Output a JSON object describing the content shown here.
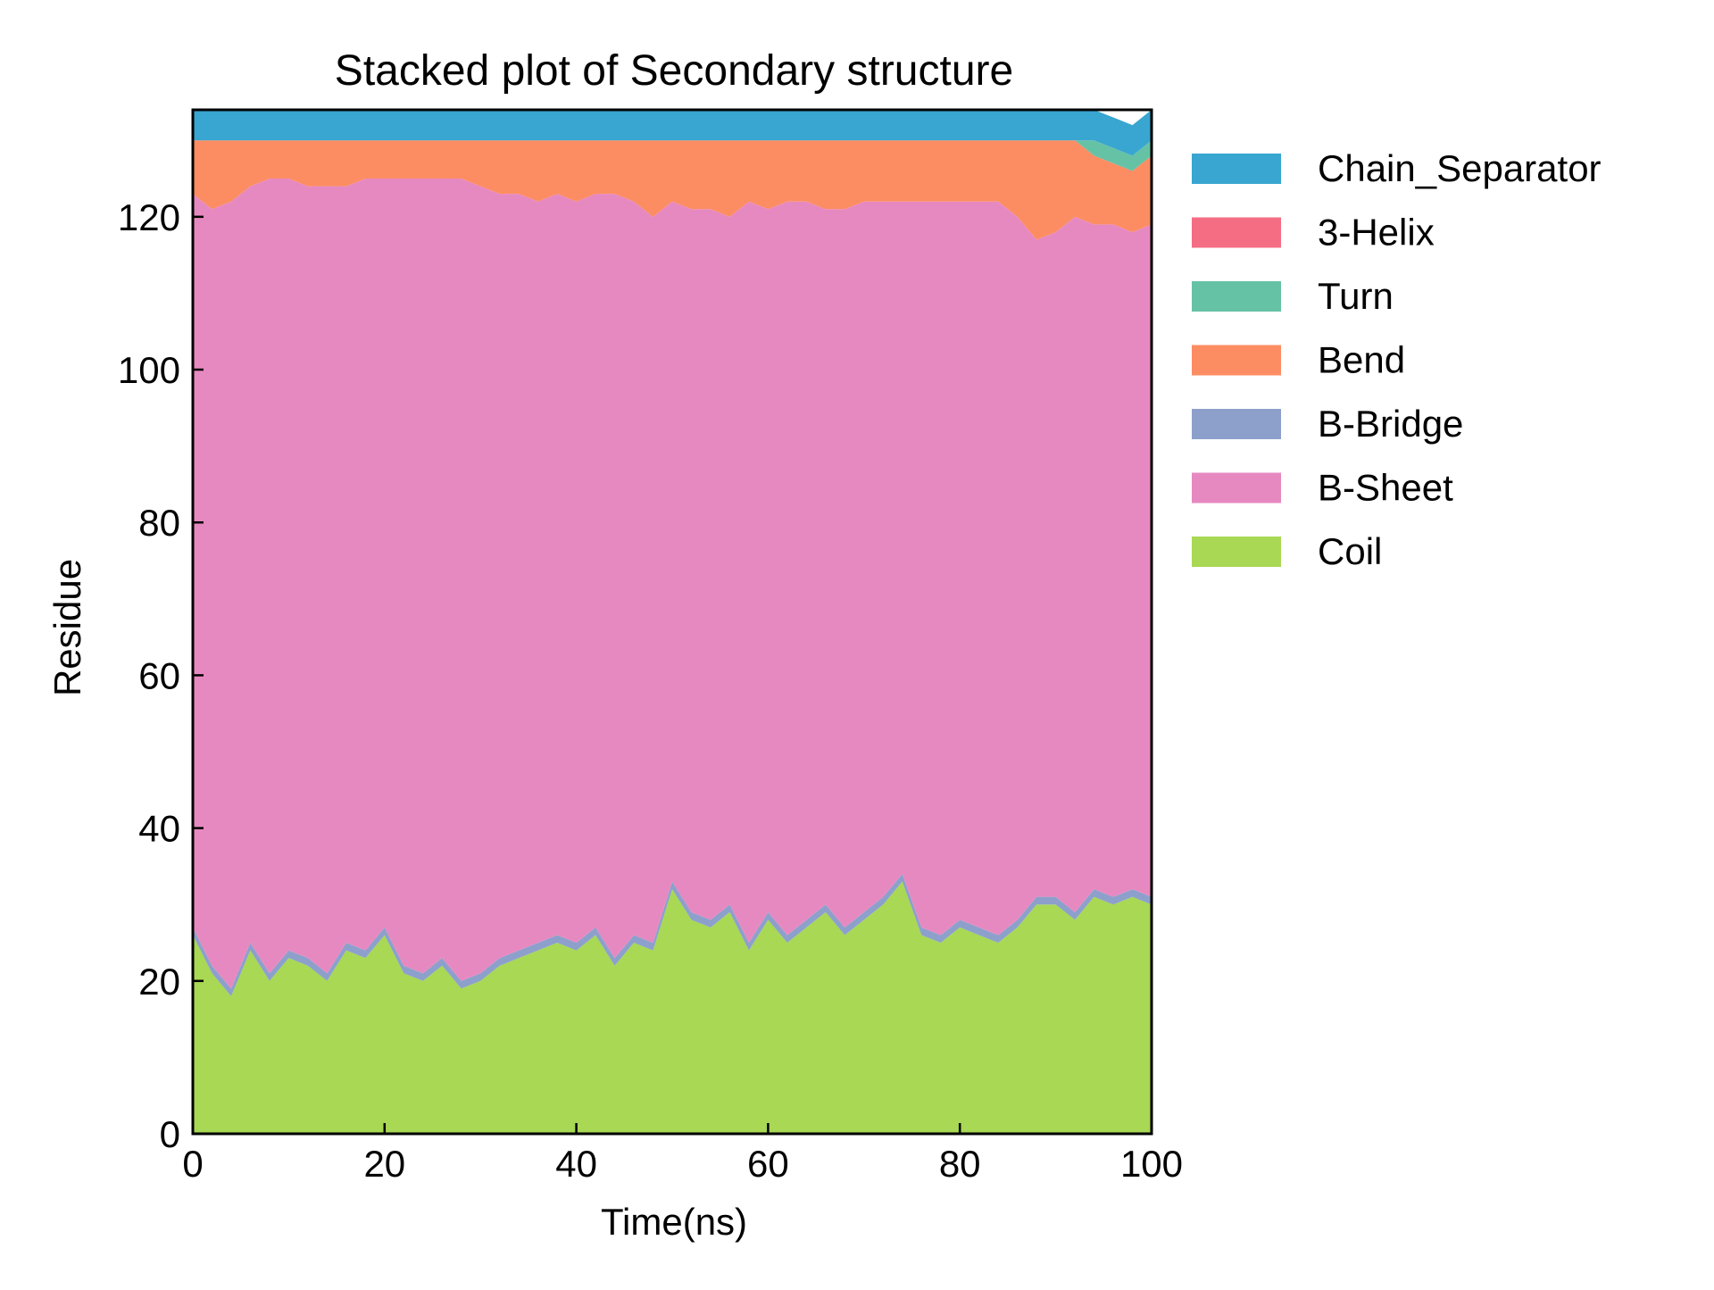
{
  "chart_data": {
    "type": "area",
    "title": "Stacked plot of Secondary structure",
    "xlabel": "Time(ns)",
    "ylabel": "Residue",
    "xlim": [
      0,
      100
    ],
    "ylim": [
      0,
      134
    ],
    "xticks": [
      0,
      20,
      40,
      60,
      80,
      100
    ],
    "yticks": [
      0,
      20,
      40,
      60,
      80,
      100,
      120
    ],
    "grid": false,
    "legend_position": "outside-right",
    "x": [
      0,
      2,
      4,
      6,
      8,
      10,
      12,
      14,
      16,
      18,
      20,
      22,
      24,
      26,
      28,
      30,
      32,
      34,
      36,
      38,
      40,
      42,
      44,
      46,
      48,
      50,
      52,
      54,
      56,
      58,
      60,
      62,
      64,
      66,
      68,
      70,
      72,
      74,
      76,
      78,
      80,
      82,
      84,
      86,
      88,
      90,
      92,
      94,
      96,
      98,
      100
    ],
    "series": [
      {
        "name": "Coil",
        "color": "#a8d854",
        "values": [
          26,
          21,
          18,
          24,
          20,
          23,
          22,
          20,
          24,
          23,
          26,
          21,
          20,
          22,
          19,
          20,
          22,
          23,
          24,
          25,
          24,
          26,
          22,
          25,
          24,
          32,
          28,
          27,
          29,
          24,
          28,
          25,
          27,
          29,
          26,
          28,
          30,
          33,
          26,
          25,
          27,
          26,
          25,
          27,
          30,
          30,
          28,
          31,
          30,
          31,
          30
        ]
      },
      {
        "name": "B-Bridge",
        "color": "#8da0cb",
        "values": [
          1,
          1,
          1,
          1,
          1,
          1,
          1,
          1,
          1,
          1,
          1,
          1,
          1,
          1,
          1,
          1,
          1,
          1,
          1,
          1,
          1,
          1,
          1,
          1,
          1,
          1,
          1,
          1,
          1,
          1,
          1,
          1,
          1,
          1,
          1,
          1,
          1,
          1,
          1,
          1,
          1,
          1,
          1,
          1,
          1,
          1,
          1,
          1,
          1,
          1,
          1
        ]
      },
      {
        "name": "B-Sheet",
        "color": "#e789c1",
        "values": [
          96,
          99,
          103,
          99,
          104,
          101,
          101,
          103,
          99,
          101,
          98,
          103,
          104,
          102,
          105,
          103,
          100,
          99,
          97,
          97,
          97,
          96,
          100,
          96,
          95,
          89,
          92,
          93,
          90,
          97,
          92,
          96,
          94,
          91,
          94,
          93,
          91,
          88,
          95,
          96,
          94,
          95,
          96,
          92,
          86,
          87,
          91,
          87,
          88,
          86,
          88
        ]
      },
      {
        "name": "Bend",
        "color": "#fc8d62",
        "values": [
          7,
          9,
          8,
          6,
          5,
          5,
          6,
          6,
          6,
          5,
          5,
          5,
          5,
          5,
          5,
          6,
          7,
          7,
          8,
          7,
          8,
          7,
          7,
          8,
          10,
          8,
          9,
          9,
          10,
          8,
          9,
          8,
          8,
          9,
          9,
          8,
          8,
          8,
          8,
          8,
          8,
          8,
          8,
          10,
          13,
          12,
          10,
          9,
          8,
          8,
          9
        ]
      },
      {
        "name": "Turn",
        "color": "#66c2a5",
        "values": [
          0,
          0,
          0,
          0,
          0,
          0,
          0,
          0,
          0,
          0,
          0,
          0,
          0,
          0,
          0,
          0,
          0,
          0,
          0,
          0,
          0,
          0,
          0,
          0,
          0,
          0,
          0,
          0,
          0,
          0,
          0,
          0,
          0,
          0,
          0,
          0,
          0,
          0,
          0,
          0,
          0,
          0,
          0,
          0,
          0,
          0,
          0,
          2,
          2,
          2,
          2
        ]
      },
      {
        "name": "3-Helix",
        "color": "#f46d83",
        "values": [
          0,
          0,
          0,
          0,
          0,
          0,
          0,
          0,
          0,
          0,
          0,
          0,
          0,
          0,
          0,
          0,
          0,
          0,
          0,
          0,
          0,
          0,
          0,
          0,
          0,
          0,
          0,
          0,
          0,
          0,
          0,
          0,
          0,
          0,
          0,
          0,
          0,
          0,
          0,
          0,
          0,
          0,
          0,
          0,
          0,
          0,
          0,
          0,
          0,
          0,
          0
        ]
      },
      {
        "name": "Chain_Separator",
        "color": "#38a6d0",
        "values": [
          4,
          4,
          4,
          4,
          4,
          4,
          4,
          4,
          4,
          4,
          4,
          4,
          4,
          4,
          4,
          4,
          4,
          4,
          4,
          4,
          4,
          4,
          4,
          4,
          4,
          4,
          4,
          4,
          4,
          4,
          4,
          4,
          4,
          4,
          4,
          4,
          4,
          4,
          4,
          4,
          4,
          4,
          4,
          4,
          4,
          4,
          4,
          4,
          4,
          4,
          4
        ]
      }
    ],
    "legend_order": [
      "Chain_Separator",
      "3-Helix",
      "Turn",
      "Bend",
      "B-Bridge",
      "B-Sheet",
      "Coil"
    ]
  }
}
